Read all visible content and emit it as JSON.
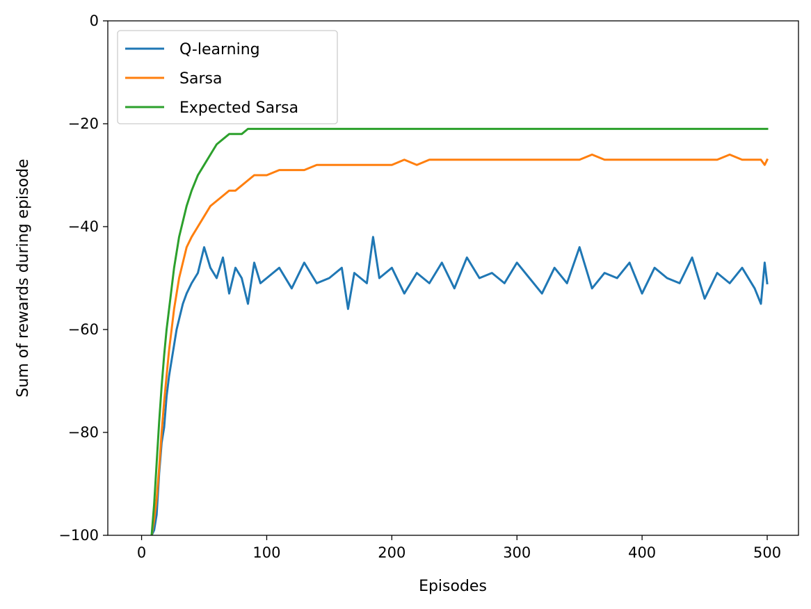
{
  "chart_data": {
    "type": "line",
    "title": "",
    "xlabel": "Episodes",
    "ylabel": "Sum of rewards during episode",
    "xlim": [
      -27,
      525
    ],
    "ylim": [
      -100,
      0
    ],
    "xticks": [
      0,
      100,
      200,
      300,
      400,
      500
    ],
    "xtick_labels": [
      "0",
      "100",
      "200",
      "300",
      "400",
      "500"
    ],
    "yticks": [
      -100,
      -80,
      -60,
      -40,
      -20,
      0
    ],
    "ytick_labels": [
      "−100",
      "−80",
      "−60",
      "−40",
      "−20",
      "0"
    ],
    "grid": false,
    "legend": "top-left",
    "series": [
      {
        "name": "Q-learning",
        "color": "#1f77b4",
        "x": [
          8,
          10,
          12,
          14,
          16,
          18,
          20,
          22,
          24,
          26,
          28,
          30,
          33,
          36,
          40,
          45,
          50,
          55,
          60,
          65,
          70,
          75,
          80,
          85,
          90,
          95,
          100,
          110,
          120,
          130,
          140,
          150,
          160,
          165,
          170,
          180,
          185,
          190,
          200,
          210,
          220,
          230,
          240,
          250,
          260,
          270,
          280,
          290,
          300,
          310,
          320,
          330,
          340,
          350,
          360,
          370,
          380,
          390,
          400,
          410,
          420,
          430,
          440,
          450,
          460,
          470,
          480,
          490,
          495,
          498,
          500
        ],
        "values": [
          -100,
          -99,
          -96,
          -88,
          -82,
          -79,
          -73,
          -69,
          -66,
          -63,
          -60,
          -58,
          -55,
          -53,
          -51,
          -49,
          -44,
          -48,
          -50,
          -46,
          -53,
          -48,
          -50,
          -55,
          -47,
          -51,
          -50,
          -48,
          -52,
          -47,
          -51,
          -50,
          -48,
          -56,
          -49,
          -51,
          -42,
          -50,
          -48,
          -53,
          -49,
          -51,
          -47,
          -52,
          -46,
          -50,
          -49,
          -51,
          -47,
          -50,
          -53,
          -48,
          -51,
          -44,
          -52,
          -49,
          -50,
          -47,
          -53,
          -48,
          -50,
          -51,
          -46,
          -54,
          -49,
          -51,
          -48,
          -52,
          -55,
          -47,
          -51
        ]
      },
      {
        "name": "Sarsa",
        "color": "#ff7f0e",
        "x": [
          8,
          10,
          12,
          14,
          16,
          18,
          20,
          22,
          24,
          26,
          28,
          30,
          33,
          36,
          40,
          45,
          50,
          55,
          60,
          65,
          70,
          75,
          80,
          85,
          90,
          95,
          100,
          110,
          120,
          130,
          140,
          150,
          160,
          170,
          180,
          190,
          200,
          210,
          220,
          230,
          240,
          250,
          260,
          270,
          280,
          290,
          300,
          310,
          320,
          330,
          340,
          350,
          360,
          370,
          380,
          390,
          400,
          410,
          420,
          430,
          440,
          450,
          460,
          470,
          480,
          490,
          495,
          498,
          500
        ],
        "values": [
          -100,
          -97,
          -93,
          -87,
          -80,
          -74,
          -69,
          -64,
          -60,
          -56,
          -53,
          -50,
          -47,
          -44,
          -42,
          -40,
          -38,
          -36,
          -35,
          -34,
          -33,
          -33,
          -32,
          -31,
          -30,
          -30,
          -30,
          -29,
          -29,
          -29,
          -28,
          -28,
          -28,
          -28,
          -28,
          -28,
          -28,
          -27,
          -28,
          -27,
          -27,
          -27,
          -27,
          -27,
          -27,
          -27,
          -27,
          -27,
          -27,
          -27,
          -27,
          -27,
          -26,
          -27,
          -27,
          -27,
          -27,
          -27,
          -27,
          -27,
          -27,
          -27,
          -27,
          -26,
          -27,
          -27,
          -27,
          -28,
          -27
        ]
      },
      {
        "name": "Expected Sarsa",
        "color": "#2ca02c",
        "x": [
          8,
          10,
          12,
          14,
          16,
          18,
          20,
          22,
          24,
          26,
          28,
          30,
          33,
          36,
          40,
          45,
          50,
          55,
          60,
          65,
          70,
          75,
          80,
          85,
          90,
          95,
          100,
          110,
          120,
          130,
          140,
          150,
          160,
          170,
          180,
          190,
          200,
          210,
          220,
          230,
          240,
          250,
          260,
          270,
          280,
          290,
          300,
          310,
          320,
          330,
          340,
          350,
          360,
          370,
          380,
          390,
          400,
          410,
          420,
          430,
          440,
          450,
          460,
          470,
          480,
          490,
          495,
          498,
          500
        ],
        "values": [
          -100,
          -94,
          -86,
          -78,
          -71,
          -65,
          -60,
          -56,
          -52,
          -48,
          -45,
          -42,
          -39,
          -36,
          -33,
          -30,
          -28,
          -26,
          -24,
          -23,
          -22,
          -22,
          -22,
          -21,
          -21,
          -21,
          -21,
          -21,
          -21,
          -21,
          -21,
          -21,
          -21,
          -21,
          -21,
          -21,
          -21,
          -21,
          -21,
          -21,
          -21,
          -21,
          -21,
          -21,
          -21,
          -21,
          -21,
          -21,
          -21,
          -21,
          -21,
          -21,
          -21,
          -21,
          -21,
          -21,
          -21,
          -21,
          -21,
          -21,
          -21,
          -21,
          -21,
          -21,
          -21,
          -21,
          -21,
          -21,
          -21
        ]
      }
    ]
  }
}
